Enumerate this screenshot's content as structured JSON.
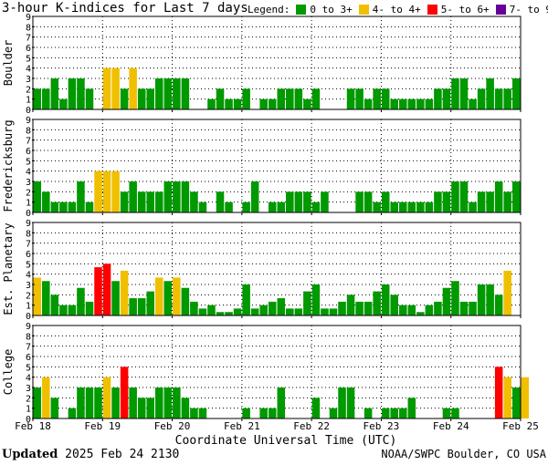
{
  "title": "3-hour K-indices for Last 7 days",
  "legend": {
    "label": "Legend:",
    "entries": [
      {
        "text": "0 to 3+",
        "color": "#009900"
      },
      {
        "text": "4- to 4+",
        "color": "#f0c000"
      },
      {
        "text": "5- to 6+",
        "color": "#ff0000"
      },
      {
        "text": "7- to 9",
        "color": "#660099"
      }
    ]
  },
  "footer": {
    "updated_label": "Updated",
    "updated_value": "2025 Feb 24 2130",
    "credit": "NOAA/SWPC Boulder, CO USA"
  },
  "chart_data": {
    "type": "bar",
    "xlabel": "Coordinate Universal Time (UTC)",
    "x_tick_labels": [
      "Feb 18",
      "Feb 19",
      "Feb 20",
      "Feb 21",
      "Feb 22",
      "Feb 23",
      "Feb 24",
      "Feb 25"
    ],
    "y_ticks": [
      0,
      1,
      2,
      3,
      4,
      5,
      6,
      7,
      8,
      9
    ],
    "ylim": [
      0,
      9
    ],
    "bins_per_day": 8,
    "color_scale": [
      {
        "max": 3.34,
        "color": "#009900"
      },
      {
        "max": 4.34,
        "color": "#f0c000"
      },
      {
        "max": 6.34,
        "color": "#ff0000"
      },
      {
        "max": 9,
        "color": "#660099"
      }
    ],
    "panels": [
      {
        "name": "Boulder",
        "values": [
          2,
          2,
          3,
          1,
          3,
          3,
          2,
          0,
          4,
          4,
          2,
          4,
          2,
          2,
          3,
          3,
          3,
          3,
          0,
          0,
          1,
          2,
          1,
          1,
          2,
          0,
          1,
          1,
          2,
          2,
          2,
          1,
          2,
          0,
          0,
          0,
          2,
          2,
          1,
          2,
          2,
          1,
          1,
          1,
          1,
          1,
          2,
          2,
          3,
          3,
          1,
          2,
          3,
          2,
          2,
          3,
          0
        ]
      },
      {
        "name": "Fredericksburg",
        "values": [
          3,
          2,
          1,
          1,
          1,
          3,
          1,
          4,
          4,
          4,
          2,
          3,
          2,
          2,
          2,
          3,
          3,
          3,
          2,
          1,
          0,
          2,
          1,
          0,
          1,
          3,
          0,
          1,
          1,
          2,
          2,
          2,
          1,
          2,
          0,
          0,
          0,
          2,
          2,
          1,
          2,
          1,
          1,
          1,
          1,
          1,
          2,
          2,
          3,
          3,
          1,
          2,
          2,
          3,
          2,
          3,
          0
        ]
      },
      {
        "name": "Est. Planetary",
        "values": [
          3.67,
          3.33,
          2,
          1,
          1,
          2.67,
          1.33,
          4.67,
          5,
          3.33,
          4.33,
          1.67,
          1.67,
          2.33,
          3.67,
          3.33,
          3.67,
          2.67,
          1.33,
          0.67,
          1,
          0.33,
          0.33,
          0.67,
          3,
          0.67,
          1,
          1.33,
          1.67,
          0.67,
          0.67,
          2.33,
          3,
          0.67,
          0.67,
          1.33,
          2,
          1.33,
          1.33,
          2.33,
          3,
          2,
          1,
          1,
          0.33,
          1,
          1.33,
          2.67,
          3.33,
          1.33,
          1.33,
          3,
          3,
          2,
          4.33
        ]
      },
      {
        "name": "College",
        "values": [
          3,
          4,
          2,
          0,
          1,
          3,
          3,
          3,
          4,
          3,
          5,
          3,
          2,
          2,
          3,
          3,
          3,
          2,
          1,
          1,
          0,
          0,
          0,
          0,
          1,
          0,
          1,
          1,
          3,
          0,
          0,
          0,
          2,
          0,
          1,
          3,
          3,
          0,
          1,
          0,
          1,
          1,
          1,
          2,
          0,
          0,
          0,
          1,
          1,
          0,
          0,
          0,
          0,
          5,
          4,
          3,
          4
        ]
      }
    ]
  }
}
